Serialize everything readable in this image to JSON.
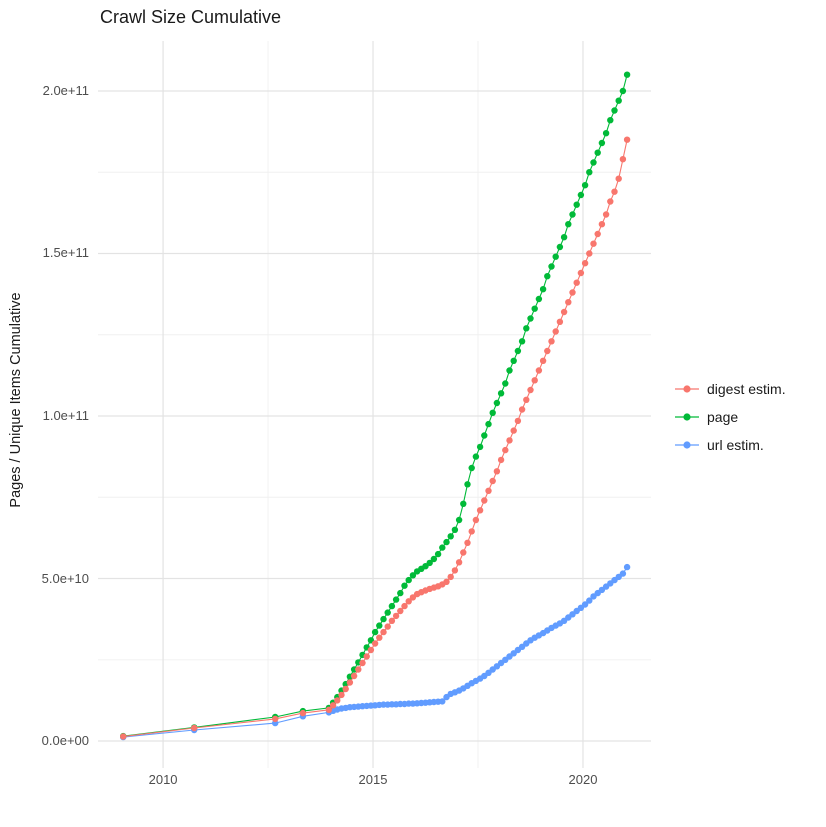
{
  "title": "Crawl Size Cumulative",
  "colors": {
    "background": "#ffffff",
    "grid_major": "#e3e3e3",
    "grid_minor": "#f0f0f0",
    "tick_text": "#4d4d4d",
    "title_text": "#1a1a1a",
    "series_digest": "#F8766D",
    "series_page": "#00BA38",
    "series_url": "#619CFF"
  },
  "chart_data": {
    "type": "line",
    "title": "Crawl Size Cumulative",
    "xlabel": "",
    "ylabel": "Pages / Unique Items Cumulative",
    "grid": true,
    "legend_position": "right",
    "xlim": [
      2008.45,
      2021.62
    ],
    "ylim": [
      -8300000000.0,
      215380000000.0
    ],
    "x_ticks": [
      {
        "value": 2010,
        "label": "2010"
      },
      {
        "value": 2015,
        "label": "2015"
      },
      {
        "value": 2020,
        "label": "2020"
      }
    ],
    "x_minor": [
      2012.5,
      2017.5
    ],
    "y_ticks": [
      {
        "value": 0,
        "label": "0.0e+00"
      },
      {
        "value": 50000000000.0,
        "label": "5.0e+10"
      },
      {
        "value": 100000000000.0,
        "label": "1.0e+11"
      },
      {
        "value": 150000000000.0,
        "label": "1.5e+11"
      },
      {
        "value": 200000000000.0,
        "label": "2.0e+11"
      }
    ],
    "y_minor": [
      25000000000.0,
      75000000000.0,
      125000000000.0,
      175000000000.0
    ],
    "legend": [
      {
        "label": "digest estim.",
        "color": "#F8766D"
      },
      {
        "label": "page",
        "color": "#00BA38"
      },
      {
        "label": "url estim.",
        "color": "#619CFF"
      }
    ],
    "series": [
      {
        "name": "url estim.",
        "color": "#619CFF",
        "points": [
          [
            2009.05,
            1200000000.0
          ],
          [
            2010.74,
            3400000000.0
          ],
          [
            2012.67,
            5500000000.0
          ],
          [
            2013.33,
            7600000000.0
          ],
          [
            2013.95,
            8800000000.0
          ],
          [
            2014.05,
            9300000000.0
          ],
          [
            2014.15,
            9700000000.0
          ],
          [
            2014.25,
            10000000000.0
          ],
          [
            2014.35,
            10200000000.0
          ],
          [
            2014.45,
            10400000000.0
          ],
          [
            2014.55,
            10500000000.0
          ],
          [
            2014.65,
            10600000000.0
          ],
          [
            2014.75,
            10700000000.0
          ],
          [
            2014.85,
            10800000000.0
          ],
          [
            2014.95,
            10900000000.0
          ],
          [
            2015.05,
            11000000000.0
          ],
          [
            2015.15,
            11100000000.0
          ],
          [
            2015.25,
            11200000000.0
          ],
          [
            2015.35,
            11200000000.0
          ],
          [
            2015.45,
            11300000000.0
          ],
          [
            2015.55,
            11300000000.0
          ],
          [
            2015.65,
            11400000000.0
          ],
          [
            2015.75,
            11400000000.0
          ],
          [
            2015.85,
            11500000000.0
          ],
          [
            2015.95,
            11500000000.0
          ],
          [
            2016.05,
            11600000000.0
          ],
          [
            2016.15,
            11700000000.0
          ],
          [
            2016.25,
            11800000000.0
          ],
          [
            2016.35,
            11900000000.0
          ],
          [
            2016.45,
            12000000000.0
          ],
          [
            2016.55,
            12100000000.0
          ],
          [
            2016.65,
            12200000000.0
          ],
          [
            2016.75,
            13500000000.0
          ],
          [
            2016.85,
            14500000000.0
          ],
          [
            2016.95,
            15000000000.0
          ],
          [
            2017.05,
            15500000000.0
          ],
          [
            2017.15,
            16200000000.0
          ],
          [
            2017.25,
            17000000000.0
          ],
          [
            2017.35,
            17800000000.0
          ],
          [
            2017.45,
            18500000000.0
          ],
          [
            2017.55,
            19200000000.0
          ],
          [
            2017.65,
            20000000000.0
          ],
          [
            2017.75,
            21000000000.0
          ],
          [
            2017.85,
            22000000000.0
          ],
          [
            2017.95,
            23000000000.0
          ],
          [
            2018.05,
            24000000000.0
          ],
          [
            2018.15,
            25000000000.0
          ],
          [
            2018.25,
            26000000000.0
          ],
          [
            2018.35,
            27000000000.0
          ],
          [
            2018.45,
            28000000000.0
          ],
          [
            2018.55,
            29000000000.0
          ],
          [
            2018.65,
            30000000000.0
          ],
          [
            2018.75,
            31000000000.0
          ],
          [
            2018.85,
            31800000000.0
          ],
          [
            2018.95,
            32500000000.0
          ],
          [
            2019.05,
            33200000000.0
          ],
          [
            2019.15,
            34000000000.0
          ],
          [
            2019.25,
            34800000000.0
          ],
          [
            2019.35,
            35500000000.0
          ],
          [
            2019.45,
            36200000000.0
          ],
          [
            2019.55,
            37000000000.0
          ],
          [
            2019.65,
            38000000000.0
          ],
          [
            2019.75,
            39000000000.0
          ],
          [
            2019.85,
            40000000000.0
          ],
          [
            2019.95,
            41000000000.0
          ],
          [
            2020.05,
            42000000000.0
          ],
          [
            2020.15,
            43200000000.0
          ],
          [
            2020.25,
            44500000000.0
          ],
          [
            2020.35,
            45500000000.0
          ],
          [
            2020.45,
            46500000000.0
          ],
          [
            2020.55,
            47500000000.0
          ],
          [
            2020.65,
            48500000000.0
          ],
          [
            2020.75,
            49500000000.0
          ],
          [
            2020.85,
            50500000000.0
          ],
          [
            2020.95,
            51500000000.0
          ],
          [
            2021.05,
            53500000000.0
          ]
        ]
      },
      {
        "name": "page",
        "color": "#00BA38",
        "points": [
          [
            2009.05,
            1500000000.0
          ],
          [
            2010.74,
            4200000000.0
          ],
          [
            2012.67,
            7400000000.0
          ],
          [
            2013.33,
            9200000000.0
          ],
          [
            2013.95,
            10200000000.0
          ],
          [
            2014.05,
            11800000000.0
          ],
          [
            2014.15,
            13500000000.0
          ],
          [
            2014.25,
            15500000000.0
          ],
          [
            2014.35,
            17500000000.0
          ],
          [
            2014.45,
            19800000000.0
          ],
          [
            2014.55,
            22000000000.0
          ],
          [
            2014.65,
            24200000000.0
          ],
          [
            2014.75,
            26500000000.0
          ],
          [
            2014.85,
            28800000000.0
          ],
          [
            2014.95,
            31000000000.0
          ],
          [
            2015.05,
            33500000000.0
          ],
          [
            2015.15,
            35500000000.0
          ],
          [
            2015.25,
            37500000000.0
          ],
          [
            2015.35,
            39500000000.0
          ],
          [
            2015.45,
            41500000000.0
          ],
          [
            2015.55,
            43500000000.0
          ],
          [
            2015.65,
            45500000000.0
          ],
          [
            2015.75,
            47800000000.0
          ],
          [
            2015.85,
            49500000000.0
          ],
          [
            2015.95,
            51000000000.0
          ],
          [
            2016.05,
            52200000000.0
          ],
          [
            2016.15,
            53000000000.0
          ],
          [
            2016.25,
            53800000000.0
          ],
          [
            2016.35,
            54800000000.0
          ],
          [
            2016.45,
            56000000000.0
          ],
          [
            2016.55,
            57500000000.0
          ],
          [
            2016.65,
            59500000000.0
          ],
          [
            2016.75,
            61200000000.0
          ],
          [
            2016.85,
            63000000000.0
          ],
          [
            2016.95,
            65000000000.0
          ],
          [
            2017.05,
            68000000000.0
          ],
          [
            2017.15,
            73000000000.0
          ],
          [
            2017.25,
            79000000000.0
          ],
          [
            2017.35,
            84000000000.0
          ],
          [
            2017.45,
            87500000000.0
          ],
          [
            2017.55,
            90500000000.0
          ],
          [
            2017.65,
            94000000000.0
          ],
          [
            2017.75,
            97500000000.0
          ],
          [
            2017.85,
            101000000000.0
          ],
          [
            2017.95,
            104000000000.0
          ],
          [
            2018.05,
            107000000000.0
          ],
          [
            2018.15,
            110000000000.0
          ],
          [
            2018.25,
            114000000000.0
          ],
          [
            2018.35,
            117000000000.0
          ],
          [
            2018.45,
            120000000000.0
          ],
          [
            2018.55,
            123000000000.0
          ],
          [
            2018.65,
            127000000000.0
          ],
          [
            2018.75,
            130000000000.0
          ],
          [
            2018.85,
            133000000000.0
          ],
          [
            2018.95,
            136000000000.0
          ],
          [
            2019.05,
            139000000000.0
          ],
          [
            2019.15,
            143000000000.0
          ],
          [
            2019.25,
            146000000000.0
          ],
          [
            2019.35,
            149000000000.0
          ],
          [
            2019.45,
            152000000000.0
          ],
          [
            2019.55,
            155000000000.0
          ],
          [
            2019.65,
            159000000000.0
          ],
          [
            2019.75,
            162000000000.0
          ],
          [
            2019.85,
            165000000000.0
          ],
          [
            2019.95,
            168000000000.0
          ],
          [
            2020.05,
            171000000000.0
          ],
          [
            2020.15,
            175000000000.0
          ],
          [
            2020.25,
            178000000000.0
          ],
          [
            2020.35,
            181000000000.0
          ],
          [
            2020.45,
            184000000000.0
          ],
          [
            2020.55,
            187000000000.0
          ],
          [
            2020.65,
            191000000000.0
          ],
          [
            2020.75,
            194000000000.0
          ],
          [
            2020.85,
            197000000000.0
          ],
          [
            2020.95,
            200000000000.0
          ],
          [
            2021.05,
            205000000000.0
          ]
        ]
      },
      {
        "name": "digest estim.",
        "color": "#F8766D",
        "points": [
          [
            2009.05,
            1400000000.0
          ],
          [
            2010.74,
            4000000000.0
          ],
          [
            2012.67,
            6800000000.0
          ],
          [
            2013.33,
            8600000000.0
          ],
          [
            2013.95,
            9600000000.0
          ],
          [
            2014.05,
            11000000000.0
          ],
          [
            2014.15,
            12500000000.0
          ],
          [
            2014.25,
            14200000000.0
          ],
          [
            2014.35,
            16000000000.0
          ],
          [
            2014.45,
            18000000000.0
          ],
          [
            2014.55,
            20000000000.0
          ],
          [
            2014.65,
            22000000000.0
          ],
          [
            2014.75,
            24000000000.0
          ],
          [
            2014.85,
            26000000000.0
          ],
          [
            2014.95,
            28000000000.0
          ],
          [
            2015.05,
            30000000000.0
          ],
          [
            2015.15,
            31800000000.0
          ],
          [
            2015.25,
            33500000000.0
          ],
          [
            2015.35,
            35200000000.0
          ],
          [
            2015.45,
            37000000000.0
          ],
          [
            2015.55,
            38500000000.0
          ],
          [
            2015.65,
            40000000000.0
          ],
          [
            2015.75,
            41500000000.0
          ],
          [
            2015.85,
            43000000000.0
          ],
          [
            2015.95,
            44200000000.0
          ],
          [
            2016.05,
            45200000000.0
          ],
          [
            2016.15,
            45800000000.0
          ],
          [
            2016.25,
            46300000000.0
          ],
          [
            2016.35,
            46800000000.0
          ],
          [
            2016.45,
            47200000000.0
          ],
          [
            2016.55,
            47600000000.0
          ],
          [
            2016.65,
            48200000000.0
          ],
          [
            2016.75,
            49000000000.0
          ],
          [
            2016.85,
            50500000000.0
          ],
          [
            2016.95,
            52500000000.0
          ],
          [
            2017.05,
            55000000000.0
          ],
          [
            2017.15,
            58000000000.0
          ],
          [
            2017.25,
            61000000000.0
          ],
          [
            2017.35,
            64500000000.0
          ],
          [
            2017.45,
            68000000000.0
          ],
          [
            2017.55,
            71000000000.0
          ],
          [
            2017.65,
            74000000000.0
          ],
          [
            2017.75,
            77000000000.0
          ],
          [
            2017.85,
            80000000000.0
          ],
          [
            2017.95,
            83000000000.0
          ],
          [
            2018.05,
            86500000000.0
          ],
          [
            2018.15,
            89500000000.0
          ],
          [
            2018.25,
            92500000000.0
          ],
          [
            2018.35,
            95500000000.0
          ],
          [
            2018.45,
            98500000000.0
          ],
          [
            2018.55,
            102000000000.0
          ],
          [
            2018.65,
            105000000000.0
          ],
          [
            2018.75,
            108000000000.0
          ],
          [
            2018.85,
            111000000000.0
          ],
          [
            2018.95,
            114000000000.0
          ],
          [
            2019.05,
            117000000000.0
          ],
          [
            2019.15,
            120000000000.0
          ],
          [
            2019.25,
            123000000000.0
          ],
          [
            2019.35,
            126000000000.0
          ],
          [
            2019.45,
            129000000000.0
          ],
          [
            2019.55,
            132000000000.0
          ],
          [
            2019.65,
            135000000000.0
          ],
          [
            2019.75,
            138000000000.0
          ],
          [
            2019.85,
            141000000000.0
          ],
          [
            2019.95,
            144000000000.0
          ],
          [
            2020.05,
            147000000000.0
          ],
          [
            2020.15,
            150000000000.0
          ],
          [
            2020.25,
            153000000000.0
          ],
          [
            2020.35,
            156000000000.0
          ],
          [
            2020.45,
            159000000000.0
          ],
          [
            2020.55,
            162000000000.0
          ],
          [
            2020.65,
            166000000000.0
          ],
          [
            2020.75,
            169000000000.0
          ],
          [
            2020.85,
            173000000000.0
          ],
          [
            2020.95,
            179000000000.0
          ],
          [
            2021.05,
            185000000000.0
          ]
        ]
      }
    ]
  }
}
